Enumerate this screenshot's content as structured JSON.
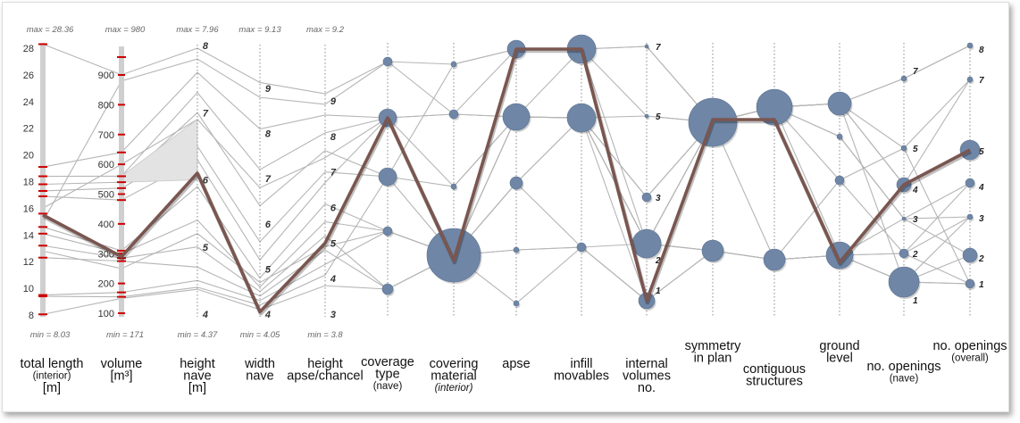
{
  "chart_data": {
    "type": "parallel-coordinates",
    "axes": [
      {
        "key": "total_length",
        "label": [
          "total length",
          "(interior)",
          "[m]"
        ],
        "ticks": [
          "8",
          "10",
          "12",
          "14",
          "16",
          "18",
          "20",
          "22",
          "24",
          "26",
          "28"
        ],
        "min_label": "min = 8.03",
        "max_label": "max = 28.36"
      },
      {
        "key": "volume",
        "label": [
          "volume",
          "[m³]"
        ],
        "ticks": [
          "100",
          "200",
          "300",
          "400",
          "500",
          "600",
          "700",
          "800",
          "900"
        ],
        "min_label": "min = 171",
        "max_label": "max = 980"
      },
      {
        "key": "height_nave",
        "label": [
          "height",
          "nave",
          "[m]"
        ],
        "ticks": [
          "4",
          "5",
          "6",
          "7",
          "8"
        ],
        "min_label": "min = 4.37",
        "max_label": "max = 7.96"
      },
      {
        "key": "width_nave",
        "label": [
          "width",
          "nave"
        ],
        "ticks": [
          "4",
          "5",
          "6",
          "7",
          "8",
          "9"
        ],
        "min_label": "min = 4.05",
        "max_label": "max = 9.13"
      },
      {
        "key": "height_apse",
        "label": [
          "height",
          "apse/chancel"
        ],
        "ticks": [
          "3",
          "4",
          "5",
          "6",
          "7",
          "8",
          "9"
        ],
        "min_label": "min = 3.8",
        "max_label": "max = 9.2"
      },
      {
        "key": "coverage_type",
        "label": [
          "coverage",
          "type",
          "(nave)"
        ]
      },
      {
        "key": "covering_material",
        "label": [
          "covering",
          "material",
          "(interior)"
        ]
      },
      {
        "key": "apse",
        "label": [
          "apse"
        ]
      },
      {
        "key": "infill_movables",
        "label": [
          "infill",
          "movables"
        ]
      },
      {
        "key": "internal_volumes",
        "label": [
          "internal",
          "volumes",
          "no."
        ],
        "categories": [
          "1",
          "2",
          "3",
          "5",
          "7"
        ]
      },
      {
        "key": "symmetry",
        "label": [
          "symmetry",
          "in plan"
        ]
      },
      {
        "key": "contiguous",
        "label": [
          "contiguous",
          "structures"
        ]
      },
      {
        "key": "ground_level",
        "label": [
          "ground",
          "level"
        ]
      },
      {
        "key": "openings_nave",
        "label": [
          "no. openings",
          "(nave)"
        ],
        "categories": [
          "1",
          "2",
          "3",
          "4",
          "5",
          "7"
        ]
      },
      {
        "key": "openings_overall",
        "label": [
          "no. openings",
          "(overall)"
        ],
        "categories": [
          "1",
          "2",
          "3",
          "4",
          "5",
          "7",
          "8"
        ]
      }
    ],
    "highlighted_record": {
      "total_length": 15.5,
      "volume": 290,
      "height_nave": 6.1,
      "width_nave": 4.05,
      "height_apse": 5.0
    }
  }
}
